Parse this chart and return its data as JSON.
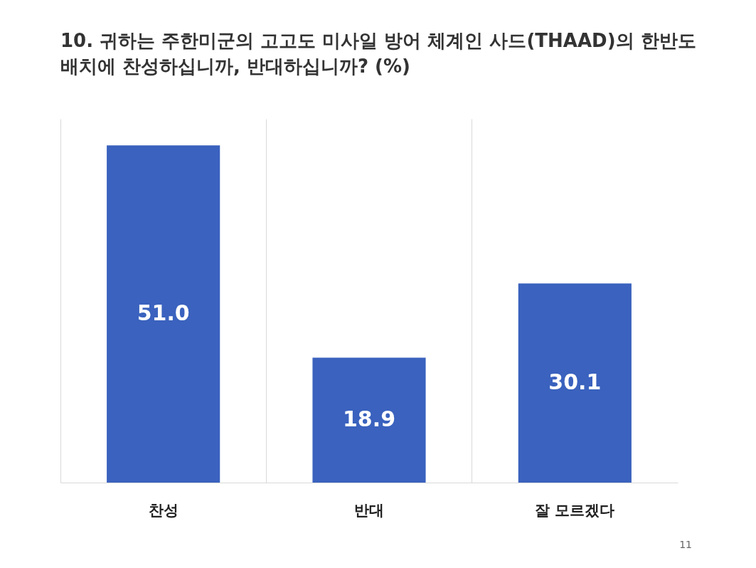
{
  "chart_data": {
    "type": "bar",
    "title": "10. 귀하는 주한미군의 고고도 미사일 방어 체계인 사드(THAAD)의 한반도 배치에 찬성하십니까, 반대하십니까? (%)",
    "categories": [
      "찬성",
      "반대",
      "잘 모르겠다"
    ],
    "values": [
      51.0,
      18.9,
      30.1
    ],
    "color": "#3a62be",
    "value_labels": [
      "51.0",
      "18.9",
      "30.1"
    ],
    "grid": "x",
    "tick_labels": "x",
    "annotations": [
      "11"
    ]
  }
}
